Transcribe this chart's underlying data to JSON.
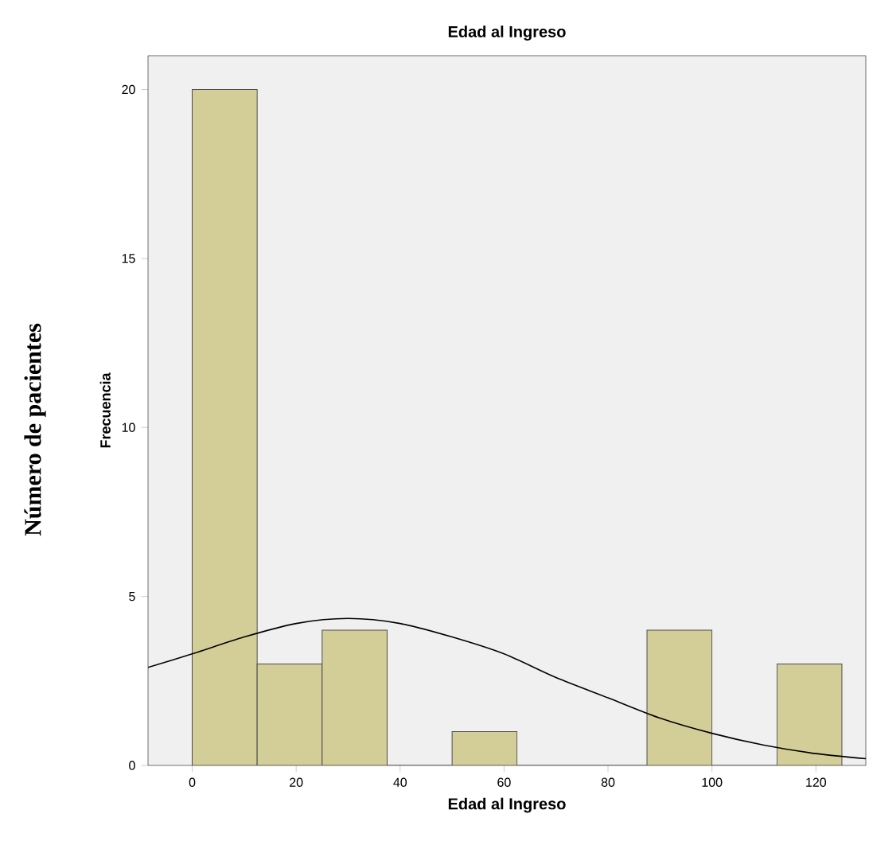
{
  "chart_data": {
    "type": "histogram",
    "title": "Edad al Ingreso",
    "xlabel": "Edad al Ingreso",
    "ylabel": "Frecuencia",
    "annotations": [
      "Número de pacientes"
    ],
    "series": [
      {
        "bins": [
          0,
          12.5,
          25,
          37.5,
          50,
          62.5,
          75,
          87.5,
          100,
          112.5,
          125
        ],
        "values": [
          20,
          3,
          4,
          0,
          1,
          0,
          0,
          4,
          0,
          3
        ],
        "color": "#d3ce97"
      },
      {
        "type": "line",
        "x": [
          -8.5,
          0,
          10,
          20,
          30,
          40,
          50,
          60,
          70,
          80,
          90,
          100,
          110,
          120,
          129.6
        ],
        "values": [
          2.9,
          3.3,
          3.8,
          4.2,
          4.35,
          4.2,
          3.8,
          3.3,
          2.6,
          2.0,
          1.4,
          0.95,
          0.6,
          0.35,
          0.2
        ],
        "color": "#000000"
      }
    ],
    "xlim": [
      -8.5,
      129.6
    ],
    "ylim": [
      0,
      21
    ],
    "xticks": [
      0,
      20,
      40,
      60,
      80,
      100,
      120
    ],
    "yticks": [
      0,
      5,
      10,
      15,
      20
    ],
    "grid": false
  }
}
